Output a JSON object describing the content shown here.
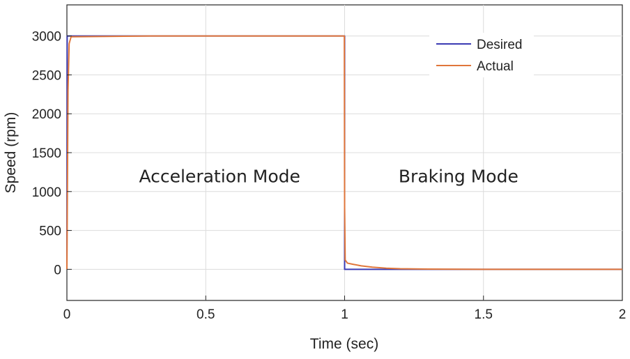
{
  "chart_data": {
    "type": "line",
    "title": "",
    "xlabel": "Time (sec)",
    "ylabel": "Speed (rpm)",
    "xlim": [
      0,
      2
    ],
    "ylim": [
      -400,
      3400
    ],
    "xticks": [
      0,
      0.5,
      1,
      1.5,
      2
    ],
    "xtick_labels": [
      "0",
      "0.5",
      "1",
      "1.5",
      "2"
    ],
    "yticks": [
      0,
      500,
      1000,
      1500,
      2000,
      2500,
      3000
    ],
    "ytick_labels": [
      "0",
      "500",
      "1000",
      "1500",
      "2000",
      "2500",
      "3000"
    ],
    "grid": true,
    "legend_position": "top-right",
    "series": [
      {
        "name": "Desired",
        "color": "#3b3bb3",
        "x": [
          0,
          0.001,
          1.0,
          1.0,
          2.0
        ],
        "y": [
          0,
          3000,
          3000,
          0,
          0
        ]
      },
      {
        "name": "Actual",
        "color": "#e0763a",
        "x": [
          0,
          0.004,
          0.008,
          0.015,
          0.3,
          0.6,
          0.999,
          1.0,
          1.002,
          1.01,
          1.03,
          1.06,
          1.1,
          1.15,
          1.2,
          1.3,
          1.5,
          2.0
        ],
        "y": [
          0,
          2300,
          2900,
          2990,
          3000,
          3000,
          3000,
          800,
          120,
          80,
          65,
          45,
          28,
          15,
          8,
          3,
          0,
          0
        ]
      }
    ],
    "annotations": [
      {
        "text": "Acceleration Mode",
        "x": 0.55,
        "y": 1200
      },
      {
        "text": "Braking Mode",
        "x": 1.41,
        "y": 1200
      }
    ]
  }
}
